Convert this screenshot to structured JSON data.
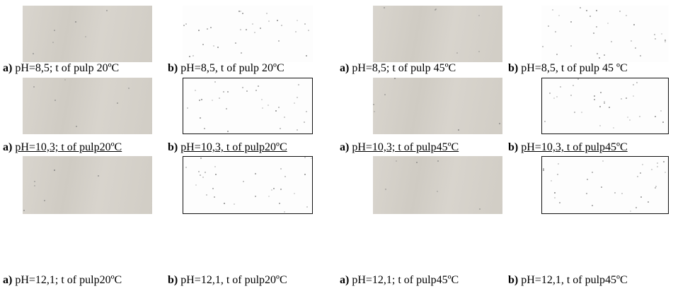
{
  "panels": [
    [
      {
        "label": "a)",
        "text": "pH=8,5; t of pulp 20ºC"
      },
      {
        "label": "b)",
        "text": "pH=8,5, t of pulp 20ºC"
      },
      {
        "label": "a)",
        "text": "pH=8,5; t of pulp 45ºC"
      },
      {
        "label": "b)",
        "text": "pH=8,5, t of pulp 45 ºC"
      }
    ],
    [
      {
        "label": "a)",
        "text": "pH=10,3; t of pulp20ºC"
      },
      {
        "label": "b)",
        "text": "pH=10,3, t of pulp20ºC"
      },
      {
        "label": "a)",
        "text": "pH=10,3; t of pulp45ºC"
      },
      {
        "label": "b)",
        "text": "pH=10,3, t of pulp45ºC"
      }
    ],
    [
      {
        "label": "a)",
        "text": "pH=12,1; t of pulp20ºC"
      },
      {
        "label": "b)",
        "text": "pH=12,1, t of pulp20ºC"
      },
      {
        "label": "a)",
        "text": "pH=12,1; t of pulp45ºC"
      },
      {
        "label": "b)",
        "text": "pH=12,1, t of pulp45ºC"
      }
    ]
  ]
}
